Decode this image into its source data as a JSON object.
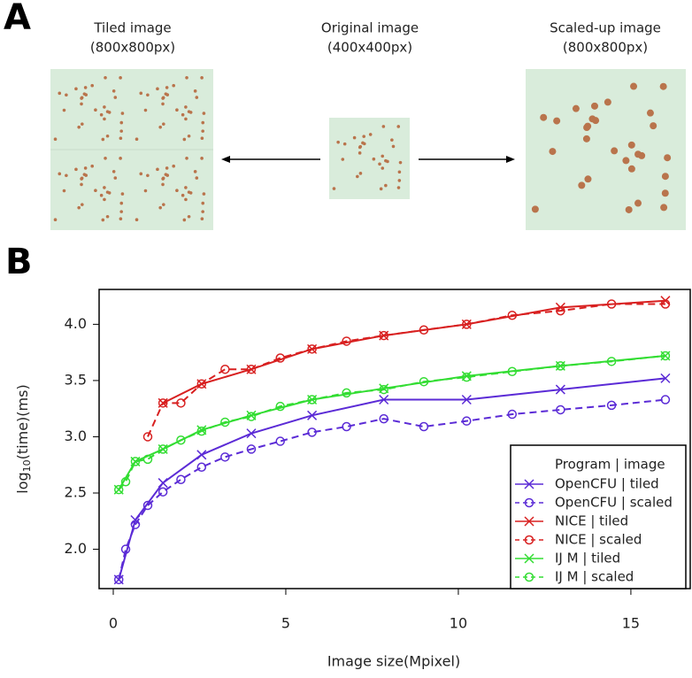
{
  "figure": {
    "panel_a_label": "A",
    "panel_b_label": "B",
    "images": [
      {
        "title": "Tiled image",
        "size": "(800x800px)"
      },
      {
        "title": "Original image",
        "size": "(400x400px)"
      },
      {
        "title": "Scaled-up image",
        "size": "(800x800px)"
      }
    ]
  },
  "chart_data": {
    "type": "line",
    "x_label": "Image size(Mpixel)",
    "y_label": {
      "base": "log",
      "subscript": "10",
      "rest": "(time)(ms)"
    },
    "xlim": [
      -0.41,
      16.72
    ],
    "xticks": [
      0,
      5,
      10,
      15
    ],
    "ylim": [
      1.65,
      4.31
    ],
    "yticks": [
      {
        "value": 2,
        "label": "2.0"
      },
      {
        "value": 2.5,
        "label": "2.5"
      },
      {
        "value": 3,
        "label": "3.0"
      },
      {
        "value": 3.5,
        "label": "3.5"
      },
      {
        "value": 4,
        "label": "4.0"
      }
    ],
    "legend_title": "Program | image",
    "legend_position": "bottom-right",
    "series": [
      {
        "name": "OpenCFU | tiled",
        "color": "#5b2bd6",
        "marker": "x",
        "dashed": false,
        "x": [
          0.16,
          0.64,
          1.44,
          2.56,
          4.0,
          5.76,
          7.84,
          10.24,
          12.96,
          16.0
        ],
        "values": [
          1.73,
          2.26,
          2.59,
          2.84,
          3.03,
          3.19,
          3.33,
          3.33,
          3.42,
          3.52
        ]
      },
      {
        "name": "OpenCFU | scaled",
        "color": "#5b2bd6",
        "marker": "o",
        "dashed": true,
        "x": [
          0.16,
          0.36,
          0.64,
          1.0,
          1.44,
          1.96,
          2.56,
          3.24,
          4.0,
          4.84,
          5.76,
          6.76,
          7.84,
          9.0,
          10.24,
          11.56,
          12.96,
          14.44,
          16.0
        ],
        "values": [
          1.73,
          2.0,
          2.22,
          2.39,
          2.51,
          2.62,
          2.73,
          2.82,
          2.89,
          2.96,
          3.04,
          3.09,
          3.16,
          3.09,
          3.14,
          3.2,
          3.24,
          3.28,
          3.33
        ]
      },
      {
        "name": "NICE | tiled",
        "color": "#d82020",
        "marker": "x",
        "dashed": false,
        "x": [
          1.44,
          2.56,
          4.0,
          5.76,
          7.84,
          10.24,
          12.96,
          16.0
        ],
        "values": [
          3.3,
          3.47,
          3.6,
          3.78,
          3.9,
          4.0,
          4.15,
          4.21
        ]
      },
      {
        "name": "NICE | scaled",
        "color": "#d82020",
        "marker": "o",
        "dashed": true,
        "x": [
          1.0,
          1.44,
          1.96,
          2.56,
          3.24,
          4.0,
          4.84,
          5.76,
          6.76,
          7.84,
          9.0,
          10.24,
          11.56,
          12.96,
          14.44,
          16.0
        ],
        "values": [
          3.0,
          3.3,
          3.3,
          3.47,
          3.6,
          3.6,
          3.7,
          3.78,
          3.85,
          3.9,
          3.95,
          4.0,
          4.08,
          4.12,
          4.18,
          4.18
        ]
      },
      {
        "name": "IJ M | tiled",
        "color": "#33dd33",
        "marker": "x",
        "dashed": false,
        "x": [
          0.16,
          0.64,
          1.44,
          2.56,
          4.0,
          5.76,
          7.84,
          10.24,
          12.96,
          16.0
        ],
        "values": [
          2.53,
          2.78,
          2.89,
          3.06,
          3.19,
          3.33,
          3.43,
          3.54,
          3.63,
          3.72
        ]
      },
      {
        "name": "IJ M | scaled",
        "color": "#33dd33",
        "marker": "o",
        "dashed": true,
        "x": [
          0.16,
          0.36,
          0.64,
          1.0,
          1.44,
          1.96,
          2.56,
          3.24,
          4.0,
          4.84,
          5.76,
          6.76,
          7.84,
          9.0,
          10.24,
          11.56,
          12.96,
          14.44,
          16.0
        ],
        "values": [
          2.53,
          2.6,
          2.78,
          2.8,
          2.89,
          2.97,
          3.05,
          3.13,
          3.18,
          3.27,
          3.33,
          3.39,
          3.42,
          3.49,
          3.53,
          3.58,
          3.63,
          3.67,
          3.72
        ]
      }
    ]
  }
}
